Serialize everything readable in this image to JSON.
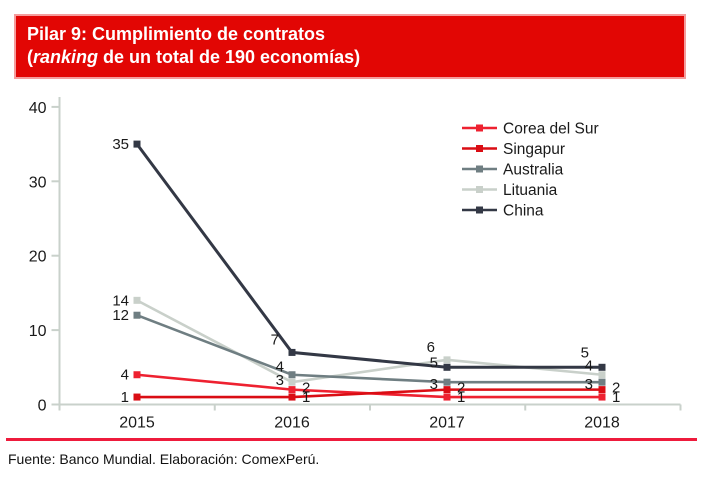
{
  "header": {
    "line1": "Pilar 9: Cumplimiento de contratos",
    "line2_open": "(",
    "line2_italic": "ranking",
    "line2_rest": " de un total de 190 economías)",
    "bg": "#e20604",
    "text_color": "#ffffff"
  },
  "chart_data": {
    "type": "line",
    "title": "Pilar 9: Cumplimiento de contratos (ranking de un total de 190 economías)",
    "x": [
      "2015",
      "2016",
      "2017",
      "2018"
    ],
    "xlabel": "",
    "ylabel": "",
    "ylim": [
      0,
      40
    ],
    "yticks": [
      0,
      10,
      20,
      30,
      40
    ],
    "grid": "off",
    "legend_position": "top-right",
    "axis_color": "#c9d1cb",
    "label_color": "#1a1a1a",
    "series": [
      {
        "name": "Corea del Sur",
        "color": "#ee2130",
        "values": [
          4,
          2,
          1,
          1
        ]
      },
      {
        "name": "Singapur",
        "color": "#da0d14",
        "values": [
          1,
          1,
          2,
          2
        ]
      },
      {
        "name": "Australia",
        "color": "#6f7e82",
        "values": [
          12,
          4,
          3,
          3
        ]
      },
      {
        "name": "Lituania",
        "color": "#c9d0ca",
        "values": [
          14,
          3,
          6,
          4
        ]
      },
      {
        "name": "China",
        "color": "#333845",
        "values": [
          35,
          7,
          5,
          5
        ]
      }
    ]
  },
  "footer": {
    "text": "Fuente: Banco Mundial. Elaboración: ComexPerú.",
    "rule_color": "#ee1b3c"
  }
}
